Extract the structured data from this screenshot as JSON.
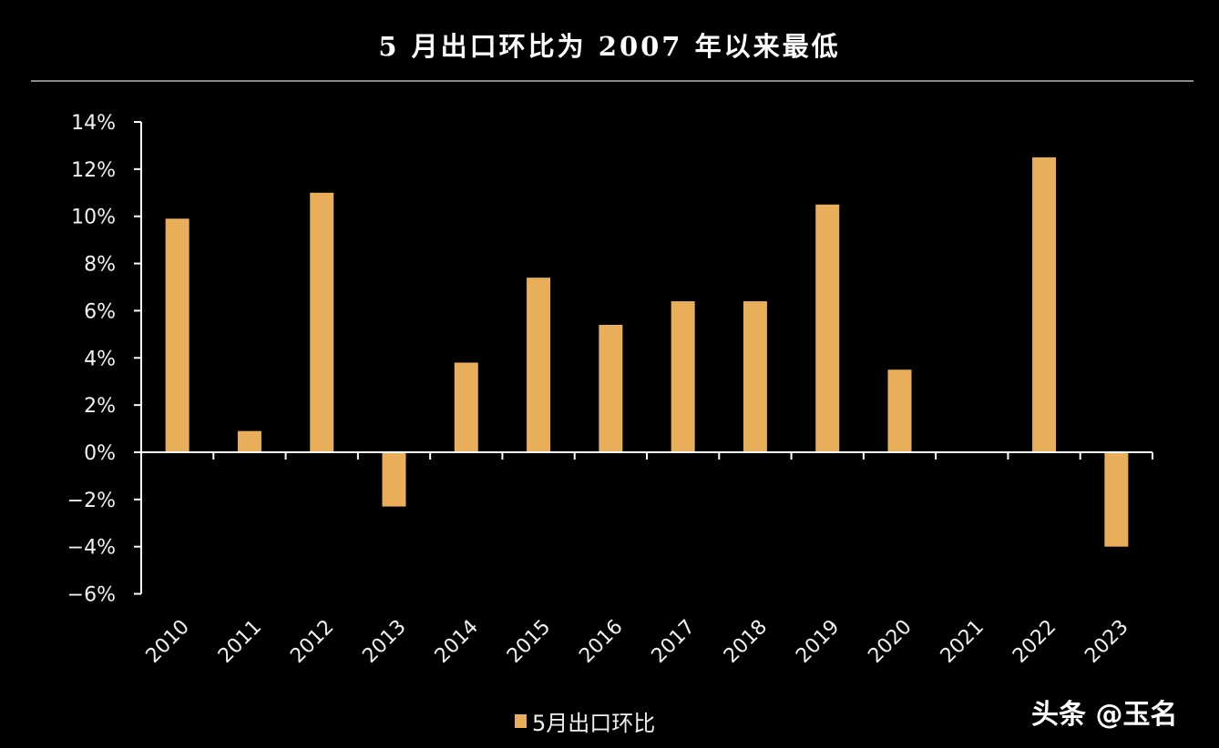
{
  "title": "5 月出口环比为 2007 年以来最低",
  "legend": {
    "label": "5月出口环比"
  },
  "watermark": "头条 @玉名",
  "colors": {
    "bar": "#E8AE5A",
    "axis": "#FFFFFF",
    "background": "#000000"
  },
  "chart_data": {
    "type": "bar",
    "title": "5 月出口环比为 2007 年以来最低",
    "xlabel": "",
    "ylabel": "",
    "categories": [
      "2010",
      "2011",
      "2012",
      "2013",
      "2014",
      "2015",
      "2016",
      "2017",
      "2018",
      "2019",
      "2020",
      "2021",
      "2022",
      "2023"
    ],
    "series": [
      {
        "name": "5月出口环比",
        "values": [
          9.9,
          0.9,
          11.0,
          -2.3,
          3.8,
          7.4,
          5.4,
          6.4,
          6.4,
          10.5,
          3.5,
          0.0,
          12.5,
          -4.0
        ]
      }
    ],
    "unit": "%",
    "ylim": [
      -6,
      14
    ],
    "yticks": [
      "14%",
      "12%",
      "10%",
      "8%",
      "6%",
      "4%",
      "2%",
      "0%",
      "-2%",
      "-4%",
      "-6%"
    ],
    "grid": false,
    "legend_position": "bottom"
  }
}
